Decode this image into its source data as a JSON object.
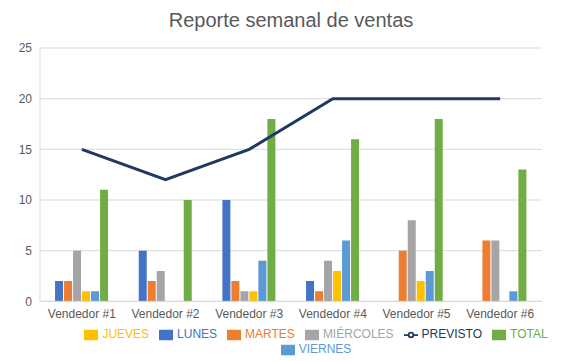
{
  "chart_data": {
    "type": "bar",
    "title": "Reporte semanal de ventas",
    "categories": [
      "Vendedor #1",
      "Vendedor #2",
      "Vendedor #3",
      "Vendedor #4",
      "Vendedor #5",
      "Vendedor #6"
    ],
    "series": [
      {
        "name": "LUNES",
        "color": "#4472c4",
        "type": "bar",
        "values": [
          2,
          5,
          10,
          2,
          null,
          null
        ]
      },
      {
        "name": "MARTES",
        "color": "#ed7d31",
        "type": "bar",
        "values": [
          2,
          2,
          2,
          1,
          5,
          6
        ]
      },
      {
        "name": "MIÉRCOLES",
        "color": "#a5a5a5",
        "type": "bar",
        "values": [
          5,
          3,
          1,
          4,
          8,
          6
        ]
      },
      {
        "name": "JUEVES",
        "color": "#ffc000",
        "type": "bar",
        "values": [
          1,
          null,
          1,
          3,
          2,
          null
        ]
      },
      {
        "name": "VIERNES",
        "color": "#5b9bd5",
        "type": "bar",
        "values": [
          1,
          null,
          4,
          6,
          3,
          1
        ]
      },
      {
        "name": "TOTAL",
        "color": "#70ad47",
        "type": "bar",
        "values": [
          11,
          10,
          18,
          16,
          18,
          13
        ]
      },
      {
        "name": "PREVISTO",
        "color": "#203864",
        "type": "line",
        "values": [
          15,
          12,
          15,
          20,
          20,
          20
        ]
      }
    ],
    "ylim": [
      0,
      25
    ],
    "yticks": [
      0,
      5,
      10,
      15,
      20,
      25
    ],
    "grid": true,
    "legend": "bottom"
  }
}
